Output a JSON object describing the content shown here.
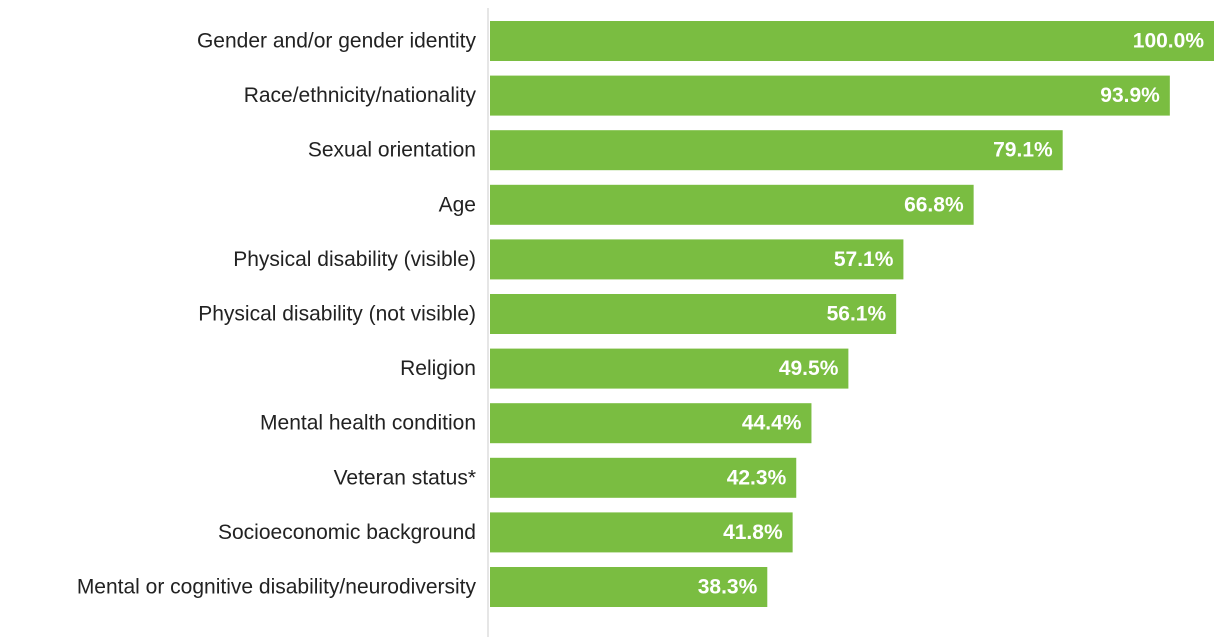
{
  "chart_data": {
    "type": "bar",
    "orientation": "horizontal",
    "categories": [
      "Gender and/or gender identity",
      "Race/ethnicity/nationality",
      "Sexual orientation",
      "Age",
      "Physical disability (visible)",
      "Physical disability (not visible)",
      "Religion",
      "Mental health condition",
      "Veteran status*",
      "Socioeconomic background",
      "Mental or cognitive disability/neurodiversity"
    ],
    "values": [
      100.0,
      93.9,
      79.1,
      66.8,
      57.1,
      56.1,
      49.5,
      44.4,
      42.3,
      41.8,
      38.3
    ],
    "value_labels": [
      "100.0%",
      "93.9%",
      "79.1%",
      "66.8%",
      "57.1%",
      "56.1%",
      "49.5%",
      "44.4%",
      "42.3%",
      "41.8%",
      "38.3%"
    ],
    "title": "",
    "xlabel": "",
    "ylabel": "",
    "xlim": [
      0,
      100
    ],
    "grid": false,
    "legend": "none",
    "bar_color": "#7ABD41",
    "axis_color": "#CCCCCC",
    "label_color": "#222222",
    "value_label_color": "#FFFFFF"
  }
}
